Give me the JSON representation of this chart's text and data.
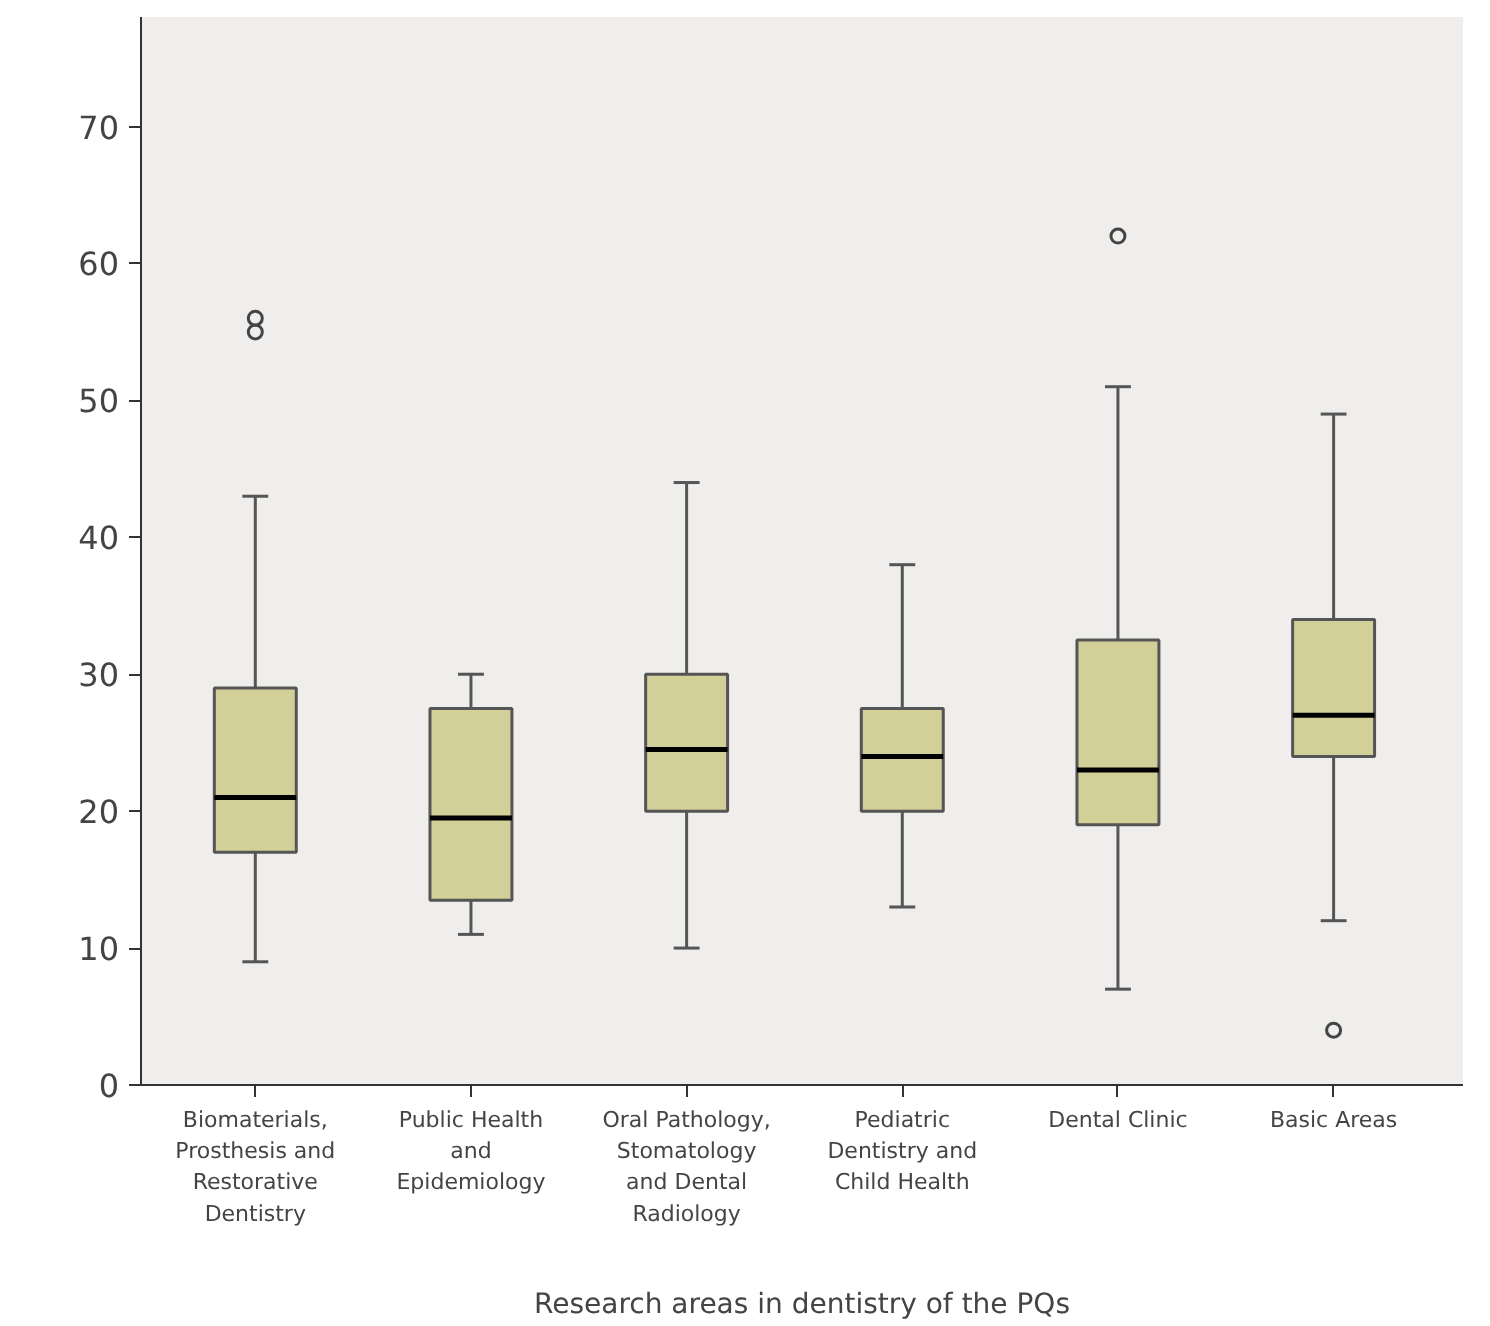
{
  "chart_data": {
    "type": "box",
    "xlabel": "Research areas in dentistry of the PQs",
    "categories": [
      "Biomaterials,\nProsthesis and\nRestorative\nDentistry",
      "Public Health\nand\nEpidemiology",
      "Oral Pathology,\nStomatology\nand Dental\nRadiology",
      "Pediatric\nDentistry and\nChild Health",
      "Dental Clinic",
      "Basic Areas"
    ],
    "boxes": [
      {
        "low": 9,
        "q1": 17,
        "median": 21,
        "q3": 29,
        "high": 43,
        "outliers": [
          55,
          56
        ]
      },
      {
        "low": 11,
        "q1": 13.5,
        "median": 19.5,
        "q3": 27.5,
        "high": 30
      },
      {
        "low": 10,
        "q1": 20,
        "median": 24.5,
        "q3": 30,
        "high": 44
      },
      {
        "low": 13,
        "q1": 20,
        "median": 24,
        "q3": 27.5,
        "high": 38
      },
      {
        "low": 7,
        "q1": 19,
        "median": 23,
        "q3": 32.5,
        "high": 51,
        "outliers": [
          62
        ]
      },
      {
        "low": 12,
        "q1": 24,
        "median": 27,
        "q3": 34,
        "high": 49,
        "outliers": [
          4
        ]
      }
    ],
    "color": "#d2cf98",
    "ylim": [
      0,
      78
    ],
    "yticks": [
      0,
      10,
      20,
      30,
      40,
      50,
      60,
      70
    ],
    "grid": false,
    "marker": "circle"
  }
}
